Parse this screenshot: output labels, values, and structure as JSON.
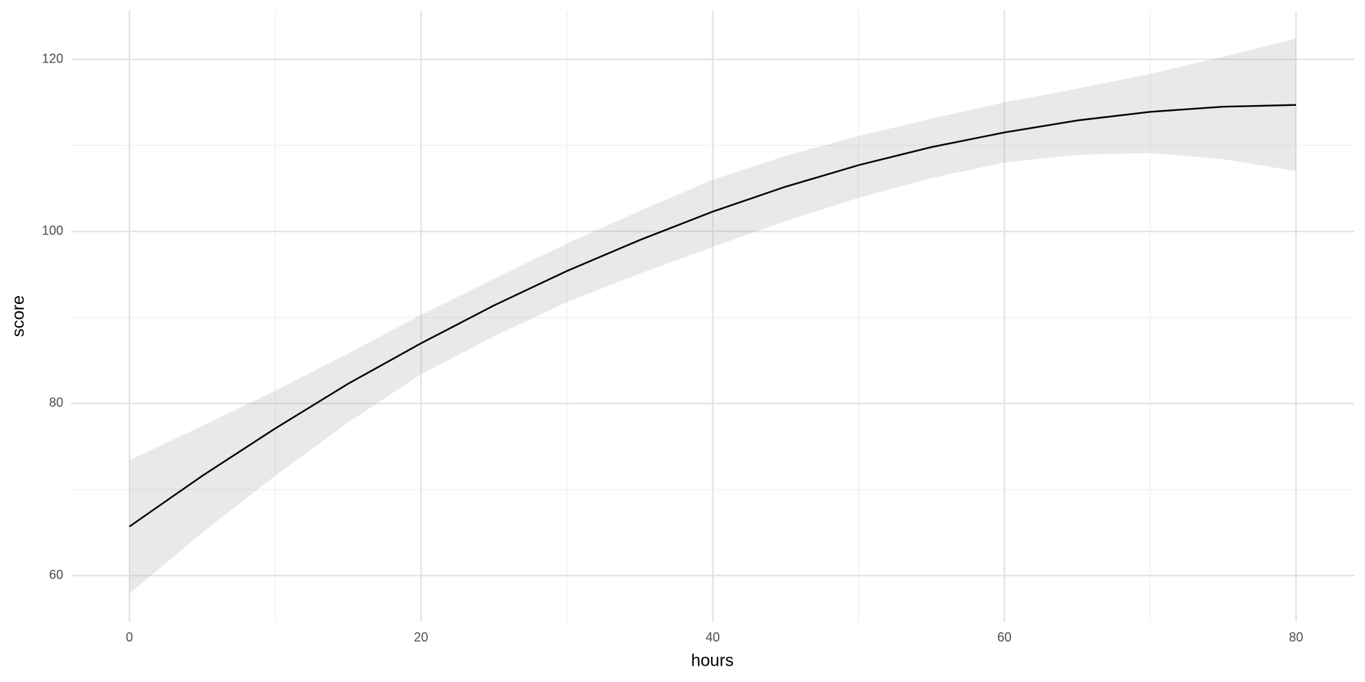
{
  "chart_data": {
    "type": "smooth",
    "x_label": "hours",
    "y_label": "score",
    "x": [
      0,
      5,
      10,
      15,
      20,
      25,
      30,
      35,
      40,
      45,
      50,
      55,
      60,
      65,
      70,
      75,
      80
    ],
    "series": [
      {
        "color": "#000000",
        "values": [
          65.7,
          71.6,
          77.1,
          82.3,
          87.0,
          91.4,
          95.4,
          99.0,
          102.3,
          105.2,
          107.7,
          109.8,
          111.5,
          112.9,
          113.9,
          114.5,
          114.7
        ]
      }
    ],
    "band": {
      "color": "#999999",
      "upper": [
        73.4,
        77.4,
        81.5,
        85.8,
        90.3,
        94.5,
        98.6,
        102.4,
        106.0,
        108.8,
        111.1,
        113.1,
        115.0,
        116.6,
        118.3,
        120.3,
        122.4
      ],
      "lower": [
        57.9,
        65.0,
        71.6,
        77.8,
        83.4,
        87.8,
        91.8,
        95.1,
        98.2,
        101.2,
        103.9,
        106.2,
        108.0,
        108.9,
        109.1,
        108.4,
        107.0
      ]
    },
    "xlim": [
      -4,
      84
    ],
    "ylim": [
      54.65,
      125.66
    ],
    "xticks": [
      0,
      20,
      40,
      60,
      80
    ],
    "yticks": [
      60,
      80,
      100,
      120
    ],
    "x_minor_grid": [
      10,
      30,
      50,
      70
    ],
    "y_minor_grid": [
      70,
      90,
      110
    ],
    "grid": true
  }
}
